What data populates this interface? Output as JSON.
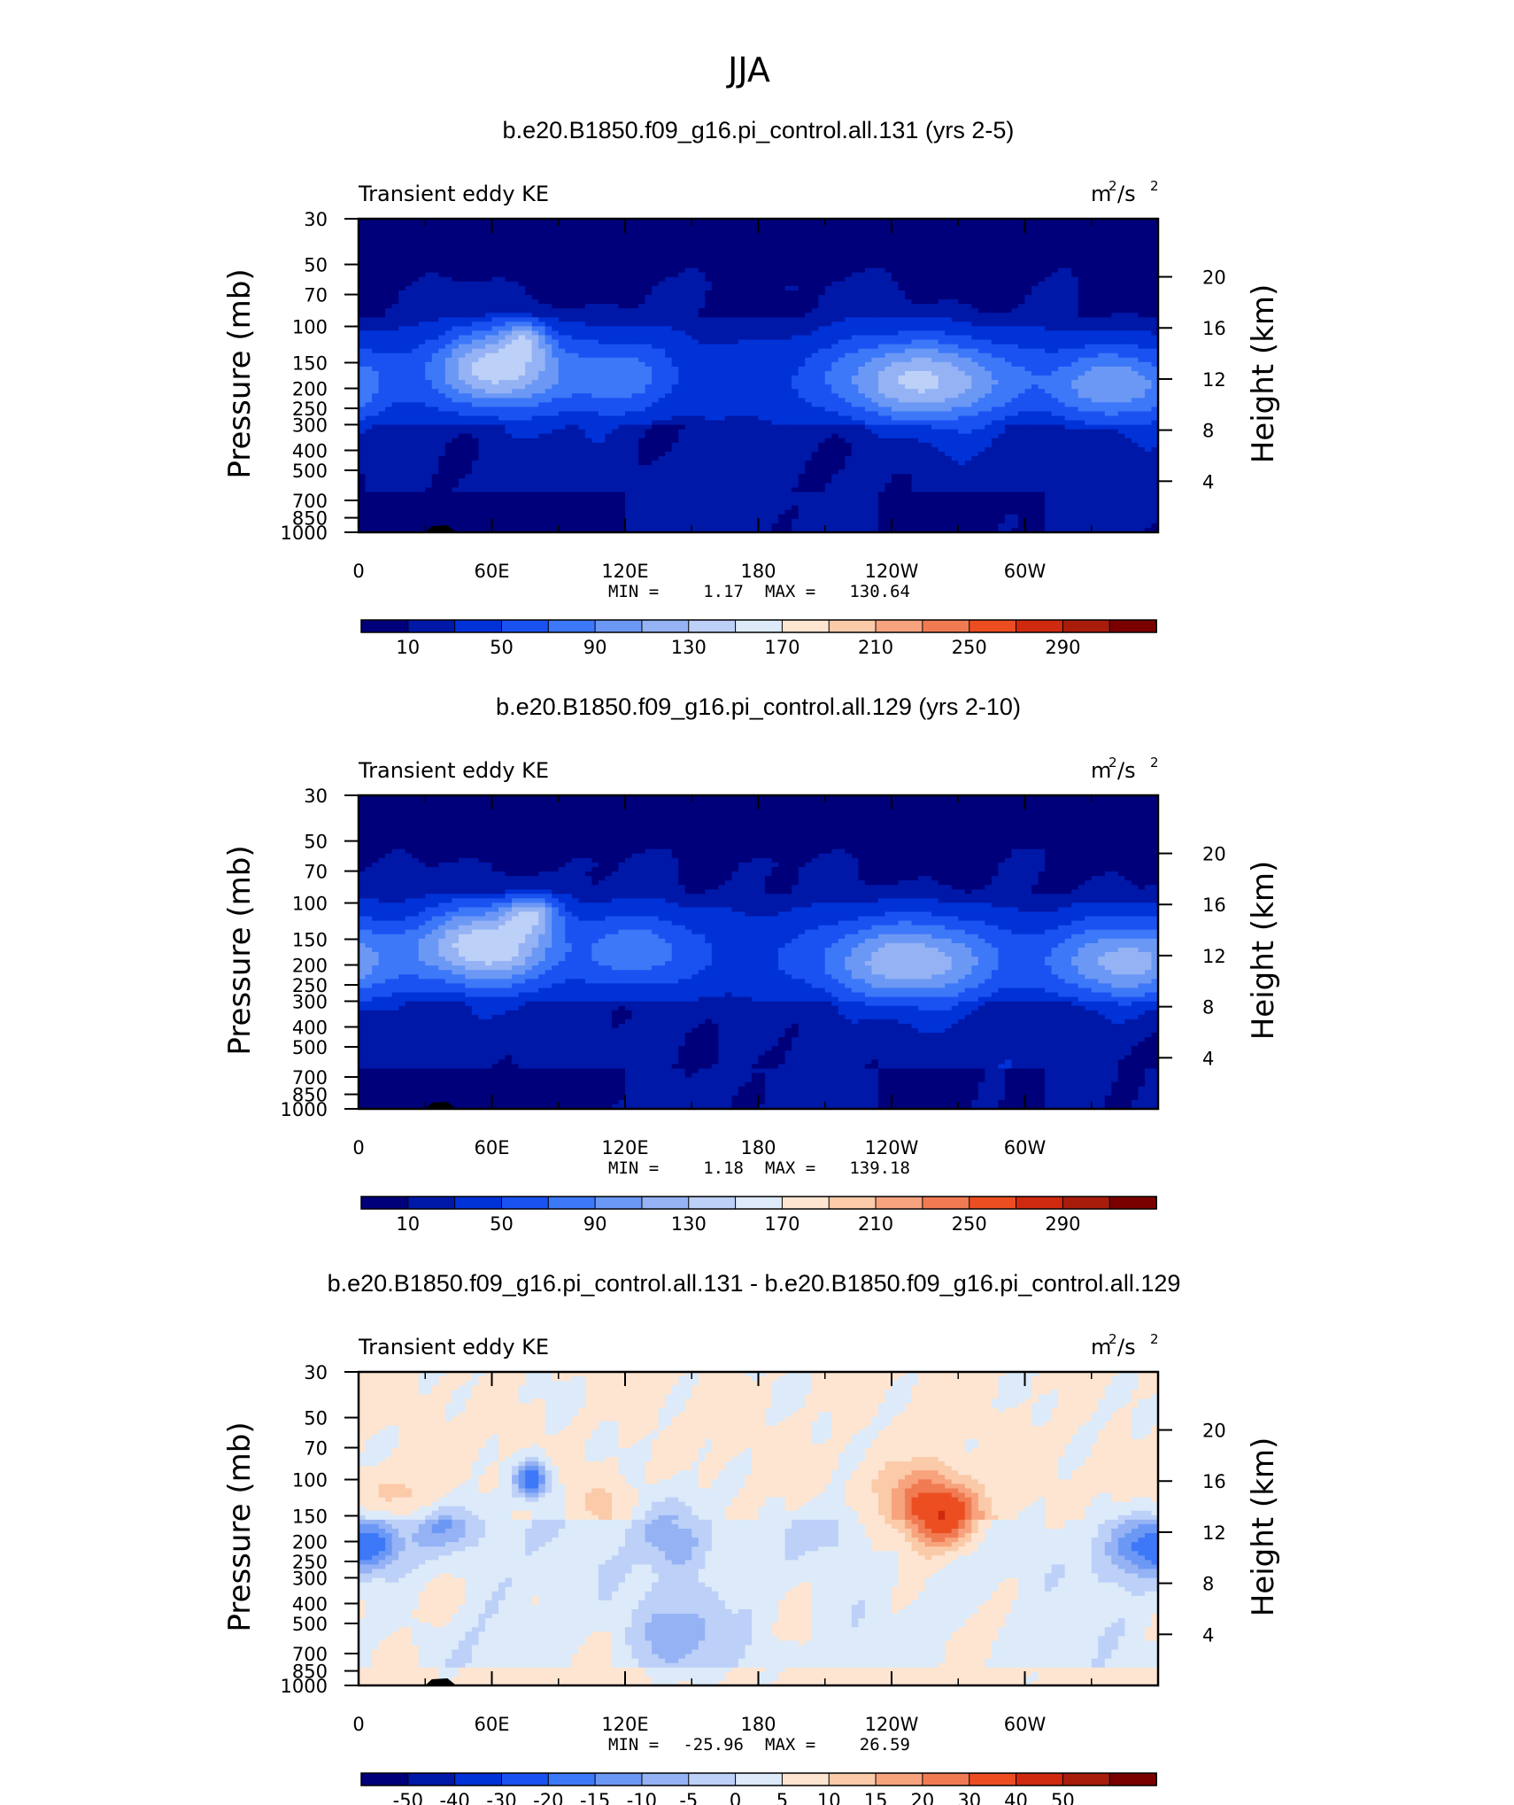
{
  "figure_title": "JJA",
  "colors": {
    "abs_scale": [
      "#00007a",
      "#0018a8",
      "#0032d8",
      "#1a52f2",
      "#3d78f8",
      "#6c98f5",
      "#94b2f4",
      "#bcd0f8",
      "#dceaf9",
      "#fde5d2",
      "#fbcaa9",
      "#f7a37d",
      "#f07b52",
      "#ec4e22",
      "#cf2a10",
      "#a81c0c",
      "#7a0000"
    ],
    "diff_scale": [
      "#00007a",
      "#0018a8",
      "#0032d8",
      "#1a52f2",
      "#3d78f8",
      "#6c98f5",
      "#94b2f4",
      "#bcd0f8",
      "#dceaf9",
      "#fde5d2",
      "#fbcaa9",
      "#f7a37d",
      "#f07b52",
      "#ec4e22",
      "#cf2a10",
      "#a81c0c",
      "#7a0000"
    ]
  },
  "chart_data": [
    {
      "type": "heatmap",
      "title": "b.e20.B1850.f09_g16.pi_control.all.131 (yrs 2-5)",
      "left_label": "Transient eddy KE",
      "units_base": "m",
      "units_exp1": "2",
      "units_mid": "/s",
      "units_exp2": "2",
      "ylabel": "Pressure (mb)",
      "ylabel2": "Height (km)",
      "pressure_ticks": [
        "30",
        "50",
        "70",
        "100",
        "150",
        "200",
        "250",
        "300",
        "400",
        "500",
        "700",
        "850",
        "1000"
      ],
      "pressure_values": [
        30,
        50,
        70,
        100,
        150,
        200,
        250,
        300,
        400,
        500,
        700,
        850,
        1000
      ],
      "height_ticks": [
        "20",
        "16",
        "12",
        "8",
        "4"
      ],
      "height_values": [
        20,
        16,
        12,
        8,
        4
      ],
      "xticks": [
        "0",
        "60E",
        "120E",
        "180",
        "120W",
        "60W"
      ],
      "xvalues": [
        0,
        60,
        120,
        180,
        240,
        300
      ],
      "xlim": [
        0,
        360
      ],
      "stats": {
        "min_label": "MIN =",
        "min": "1.17",
        "max_label": "MAX =",
        "max": "130.64"
      },
      "colorbar_labels": [
        "10",
        "50",
        "90",
        "130",
        "170",
        "210",
        "250",
        "290"
      ],
      "field": "abs",
      "variant": 1,
      "mean": 22,
      "jets": [
        {
          "lon": 62,
          "p": 160,
          "amp": 105,
          "lon_w": 28,
          "p_w": 0.45
        },
        {
          "lon": 75,
          "p": 115,
          "amp": 60,
          "lon_w": 10,
          "p_w": 0.22
        },
        {
          "lon": 118,
          "p": 175,
          "amp": 45,
          "lon_w": 25,
          "p_w": 0.45
        },
        {
          "lon": 253,
          "p": 185,
          "amp": 95,
          "lon_w": 40,
          "p_w": 0.48
        },
        {
          "lon": 340,
          "p": 195,
          "amp": 70,
          "lon_w": 30,
          "p_w": 0.42
        }
      ]
    },
    {
      "type": "heatmap",
      "title": "b.e20.B1850.f09_g16.pi_control.all.129 (yrs 2-10)",
      "left_label": "Transient eddy KE",
      "units_base": "m",
      "units_exp1": "2",
      "units_mid": "/s",
      "units_exp2": "2",
      "ylabel": "Pressure (mb)",
      "ylabel2": "Height (km)",
      "pressure_ticks": [
        "30",
        "50",
        "70",
        "100",
        "150",
        "200",
        "250",
        "300",
        "400",
        "500",
        "700",
        "850",
        "1000"
      ],
      "pressure_values": [
        30,
        50,
        70,
        100,
        150,
        200,
        250,
        300,
        400,
        500,
        700,
        850,
        1000
      ],
      "height_ticks": [
        "20",
        "16",
        "12",
        "8",
        "4"
      ],
      "height_values": [
        20,
        16,
        12,
        8,
        4
      ],
      "xticks": [
        "0",
        "60E",
        "120E",
        "180",
        "120W",
        "60W"
      ],
      "xvalues": [
        0,
        60,
        120,
        180,
        240,
        300
      ],
      "xlim": [
        0,
        360
      ],
      "stats": {
        "min_label": "MIN =",
        "min": "1.18",
        "max_label": "MAX =",
        "max": "139.18"
      },
      "colorbar_labels": [
        "10",
        "50",
        "90",
        "130",
        "170",
        "210",
        "250",
        "290"
      ],
      "field": "abs",
      "variant": 2,
      "mean": 22,
      "jets": [
        {
          "lon": 57,
          "p": 160,
          "amp": 112,
          "lon_w": 30,
          "p_w": 0.45
        },
        {
          "lon": 78,
          "p": 112,
          "amp": 70,
          "lon_w": 12,
          "p_w": 0.22
        },
        {
          "lon": 125,
          "p": 170,
          "amp": 50,
          "lon_w": 25,
          "p_w": 0.45
        },
        {
          "lon": 248,
          "p": 195,
          "amp": 85,
          "lon_w": 42,
          "p_w": 0.48
        },
        {
          "lon": 345,
          "p": 195,
          "amp": 80,
          "lon_w": 32,
          "p_w": 0.45
        }
      ]
    },
    {
      "type": "heatmap",
      "title": "b.e20.B1850.f09_g16.pi_control.all.131 - b.e20.B1850.f09_g16.pi_control.all.129",
      "left_label": "Transient eddy KE",
      "units_base": "m",
      "units_exp1": "2",
      "units_mid": "/s",
      "units_exp2": "2",
      "ylabel": "Pressure (mb)",
      "ylabel2": "Height (km)",
      "pressure_ticks": [
        "30",
        "50",
        "70",
        "100",
        "150",
        "200",
        "250",
        "300",
        "400",
        "500",
        "700",
        "850",
        "1000"
      ],
      "pressure_values": [
        30,
        50,
        70,
        100,
        150,
        200,
        250,
        300,
        400,
        500,
        700,
        850,
        1000
      ],
      "height_ticks": [
        "20",
        "16",
        "12",
        "8",
        "4"
      ],
      "height_values": [
        20,
        16,
        12,
        8,
        4
      ],
      "xticks": [
        "0",
        "60E",
        "120E",
        "180",
        "120W",
        "60W"
      ],
      "xvalues": [
        0,
        60,
        120,
        180,
        240,
        300
      ],
      "xlim": [
        0,
        360
      ],
      "stats": {
        "min_label": "MIN =",
        "min": "-25.96",
        "max_label": "MAX =",
        "max": "26.59"
      },
      "colorbar_labels": [
        "-50",
        "-40",
        "-30",
        "-20",
        "-15",
        "-10",
        "-5",
        "0",
        "5",
        "10",
        "15",
        "20",
        "30",
        "40",
        "50"
      ],
      "field": "diff",
      "variant": 3,
      "mean": 0,
      "jets": [
        {
          "lon": 263,
          "p": 155,
          "amp": 26,
          "lon_w": 18,
          "p_w": 0.35
        },
        {
          "lon": 252,
          "p": 110,
          "amp": 10,
          "lon_w": 20,
          "p_w": 0.35
        },
        {
          "lon": 20,
          "p": 120,
          "amp": 7,
          "lon_w": 20,
          "p_w": 0.3
        },
        {
          "lon": 110,
          "p": 130,
          "amp": 6,
          "lon_w": 10,
          "p_w": 0.3
        },
        {
          "lon": 78,
          "p": 100,
          "amp": -26,
          "lon_w": 8,
          "p_w": 0.2
        },
        {
          "lon": 8,
          "p": 210,
          "amp": -16,
          "lon_w": 12,
          "p_w": 0.3
        },
        {
          "lon": 40,
          "p": 170,
          "amp": -12,
          "lon_w": 20,
          "p_w": 0.3
        },
        {
          "lon": 140,
          "p": 190,
          "amp": -14,
          "lon_w": 16,
          "p_w": 0.4
        },
        {
          "lon": 350,
          "p": 210,
          "amp": -16,
          "lon_w": 18,
          "p_w": 0.35
        },
        {
          "lon": 215,
          "p": 180,
          "amp": -8,
          "lon_w": 12,
          "p_w": 0.35
        },
        {
          "lon": 150,
          "p": 550,
          "amp": -7,
          "lon_w": 28,
          "p_w": 0.45
        }
      ]
    }
  ]
}
